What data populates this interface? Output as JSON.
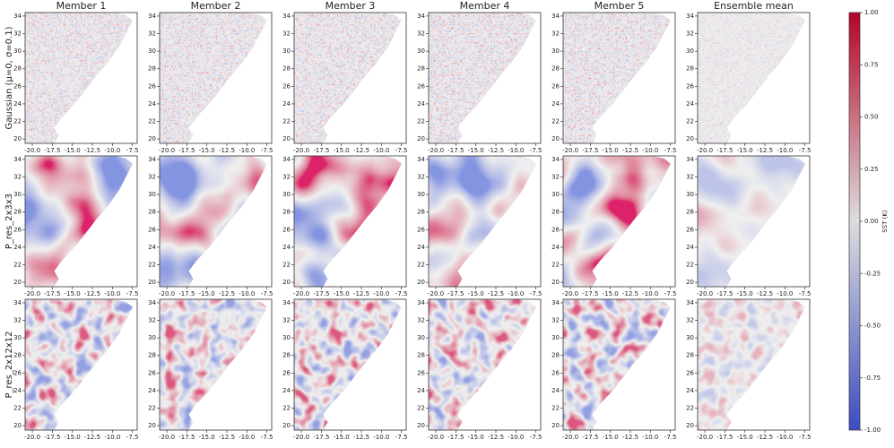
{
  "chart_data": {
    "type": "heatmap",
    "columns": [
      "Member 1",
      "Member 2",
      "Member 3",
      "Member 4",
      "Member 5",
      "Ensemble mean"
    ],
    "rows": [
      "Gaussian  (μ=0, σ=0.1)",
      "P_res_2x3x3",
      "P_res_2x12x12"
    ],
    "xlim": [
      -20.9,
      -6.9
    ],
    "xticks": [
      {
        "value": -20,
        "label": "-20.0"
      },
      {
        "value": -17.5,
        "label": "-17.5"
      },
      {
        "value": -15,
        "label": "-15.0"
      },
      {
        "value": -12.5,
        "label": "-12.5"
      },
      {
        "value": -10,
        "label": "-10.0"
      },
      {
        "value": -7.5,
        "label": "-7.5"
      }
    ],
    "ylim": [
      19.5,
      34.4
    ],
    "yticks": [
      20,
      22,
      24,
      26,
      28,
      30,
      32,
      34
    ],
    "colormap_colors": [
      "#3b4cc0",
      "#dddddd",
      "#b40426"
    ],
    "colorbar": {
      "label": "SST (K)",
      "lim": [
        -1,
        1
      ],
      "ticks": [
        {
          "value": -1,
          "label": "-1.00"
        },
        {
          "value": -0.75,
          "label": "-0.75"
        },
        {
          "value": -0.5,
          "label": "-0.50"
        },
        {
          "value": -0.25,
          "label": "-0.25"
        },
        {
          "value": 0,
          "label": "0.00"
        },
        {
          "value": 0.25,
          "label": "0.25"
        },
        {
          "value": 0.5,
          "label": "0.50"
        },
        {
          "value": 0.75,
          "label": "0.75"
        },
        {
          "value": 1,
          "label": "1.00"
        }
      ]
    }
  }
}
